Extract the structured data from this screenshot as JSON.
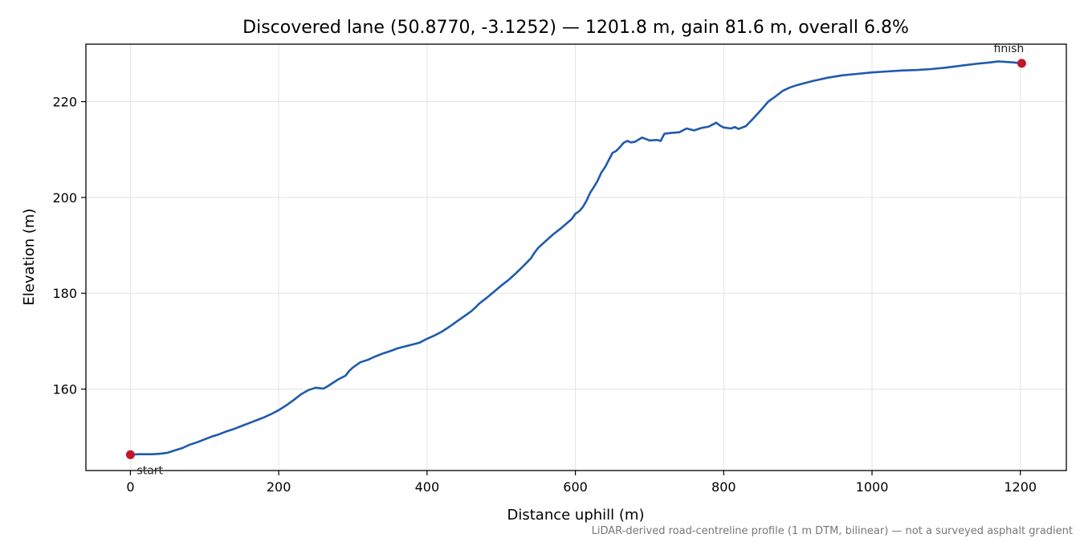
{
  "chart_data": {
    "type": "line",
    "title": "Discovered lane (50.8770, -3.1252) — 1201.8 m, gain 81.6 m, overall 6.8%",
    "xlabel": "Distance uphill (m)",
    "ylabel": "Elevation (m)",
    "xlim": [
      -60,
      1262
    ],
    "ylim": [
      143,
      232
    ],
    "xticks": [
      0,
      200,
      400,
      600,
      800,
      1000,
      1200
    ],
    "yticks": [
      160,
      180,
      200,
      220
    ],
    "grid": true,
    "colors": {
      "line": "#1f5aad",
      "marker": "#c0182a",
      "grid": "#e3e3e3"
    },
    "series": [
      {
        "x": [
          0,
          10,
          20,
          30,
          40,
          50,
          60,
          70,
          80,
          90,
          100,
          110,
          120,
          130,
          140,
          150,
          160,
          170,
          180,
          190,
          200,
          210,
          220,
          230,
          240,
          250,
          260,
          265,
          270,
          280,
          290,
          295,
          300,
          310,
          320,
          330,
          340,
          350,
          360,
          370,
          380,
          390,
          400,
          410,
          420,
          430,
          440,
          450,
          460,
          465,
          470,
          480,
          490,
          500,
          510,
          520,
          530,
          540,
          545,
          550,
          560,
          570,
          580,
          590,
          595,
          600,
          605,
          610,
          615,
          620,
          625,
          630,
          635,
          640,
          645,
          650,
          655,
          660,
          665,
          670,
          675,
          680,
          690,
          700,
          710,
          715,
          720,
          730,
          740,
          750,
          760,
          770,
          780,
          785,
          790,
          795,
          800,
          810,
          815,
          820,
          825,
          830,
          840,
          850,
          860,
          870,
          880,
          890,
          900,
          920,
          940,
          960,
          980,
          1000,
          1020,
          1040,
          1060,
          1080,
          1100,
          1120,
          1140,
          1160,
          1170,
          1180,
          1190,
          1201.8
        ],
        "y": [
          146.3,
          146.4,
          146.4,
          146.4,
          146.5,
          146.7,
          147.2,
          147.7,
          148.4,
          148.9,
          149.5,
          150.1,
          150.6,
          151.2,
          151.7,
          152.3,
          152.9,
          153.5,
          154.1,
          154.8,
          155.6,
          156.6,
          157.7,
          158.9,
          159.8,
          160.3,
          160.1,
          160.5,
          161.0,
          162.0,
          162.8,
          163.8,
          164.5,
          165.6,
          166.1,
          166.8,
          167.4,
          167.9,
          168.5,
          168.9,
          169.3,
          169.7,
          170.5,
          171.2,
          172.0,
          173.0,
          174.1,
          175.2,
          176.3,
          177.0,
          177.8,
          179.0,
          180.3,
          181.6,
          182.8,
          184.2,
          185.7,
          187.3,
          188.5,
          189.5,
          190.9,
          192.3,
          193.5,
          194.8,
          195.5,
          196.6,
          197.1,
          198.0,
          199.3,
          201.0,
          202.2,
          203.5,
          205.2,
          206.3,
          207.8,
          209.3,
          209.7,
          210.5,
          211.4,
          211.8,
          211.5,
          211.6,
          212.5,
          211.9,
          212.0,
          211.8,
          213.3,
          213.5,
          213.6,
          214.4,
          214.0,
          214.5,
          214.8,
          215.2,
          215.6,
          215.0,
          214.6,
          214.4,
          214.7,
          214.3,
          214.6,
          214.9,
          216.5,
          218.2,
          220.0,
          221.1,
          222.3,
          223.0,
          223.5,
          224.3,
          225.0,
          225.5,
          225.8,
          226.1,
          226.3,
          226.5,
          226.6,
          226.8,
          227.1,
          227.5,
          227.9,
          228.2,
          228.4,
          228.3,
          228.2,
          228.0
        ]
      }
    ],
    "annotations": [
      {
        "text": "start",
        "x": 0,
        "y": 146.3
      },
      {
        "text": "finish",
        "x": 1201.8,
        "y": 228.0
      }
    ],
    "footnote": "LiDAR-derived road-centreline profile (1 m DTM, bilinear) — not a surveyed asphalt gradient"
  }
}
